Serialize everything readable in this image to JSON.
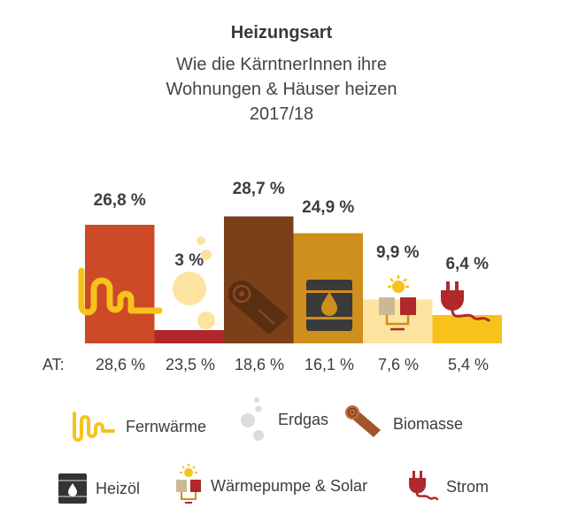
{
  "chart_data": {
    "type": "bar",
    "title": "Heizungsart",
    "subtitle_lines": [
      "Wie die KärntnerInnen ihre",
      "Wohnungen & Häuser heizen",
      "2017/18"
    ],
    "categories": [
      "Fernwärme",
      "Erdgas",
      "Biomasse",
      "Heizöl",
      "Wärmepumpe & Solar",
      "Strom"
    ],
    "values": [
      26.8,
      3,
      28.7,
      24.9,
      9.9,
      6.4
    ],
    "value_labels": [
      "26,8 %",
      "3 %",
      "28,7 %",
      "24,9 %",
      "9,9 %",
      "6,4 %"
    ],
    "colors": [
      "#cc4a27",
      "#b0282b",
      "#7a4019",
      "#cf8f1c",
      "#fde3a0",
      "#f7c21c"
    ],
    "ylim": [
      0,
      30
    ],
    "grid": false,
    "legend_placement": "bottom",
    "at_label": "AT:",
    "at_values": [
      "28,6 %",
      "23,5 %",
      "18,6 %",
      "16,1 %",
      "7,6 %",
      "5,4 %"
    ],
    "icons": [
      "pipe-icon",
      "gas-bubbles-icon",
      "log-icon",
      "oil-barrel-icon",
      "heat-pump-solar-icon",
      "electric-plug-icon"
    ]
  }
}
